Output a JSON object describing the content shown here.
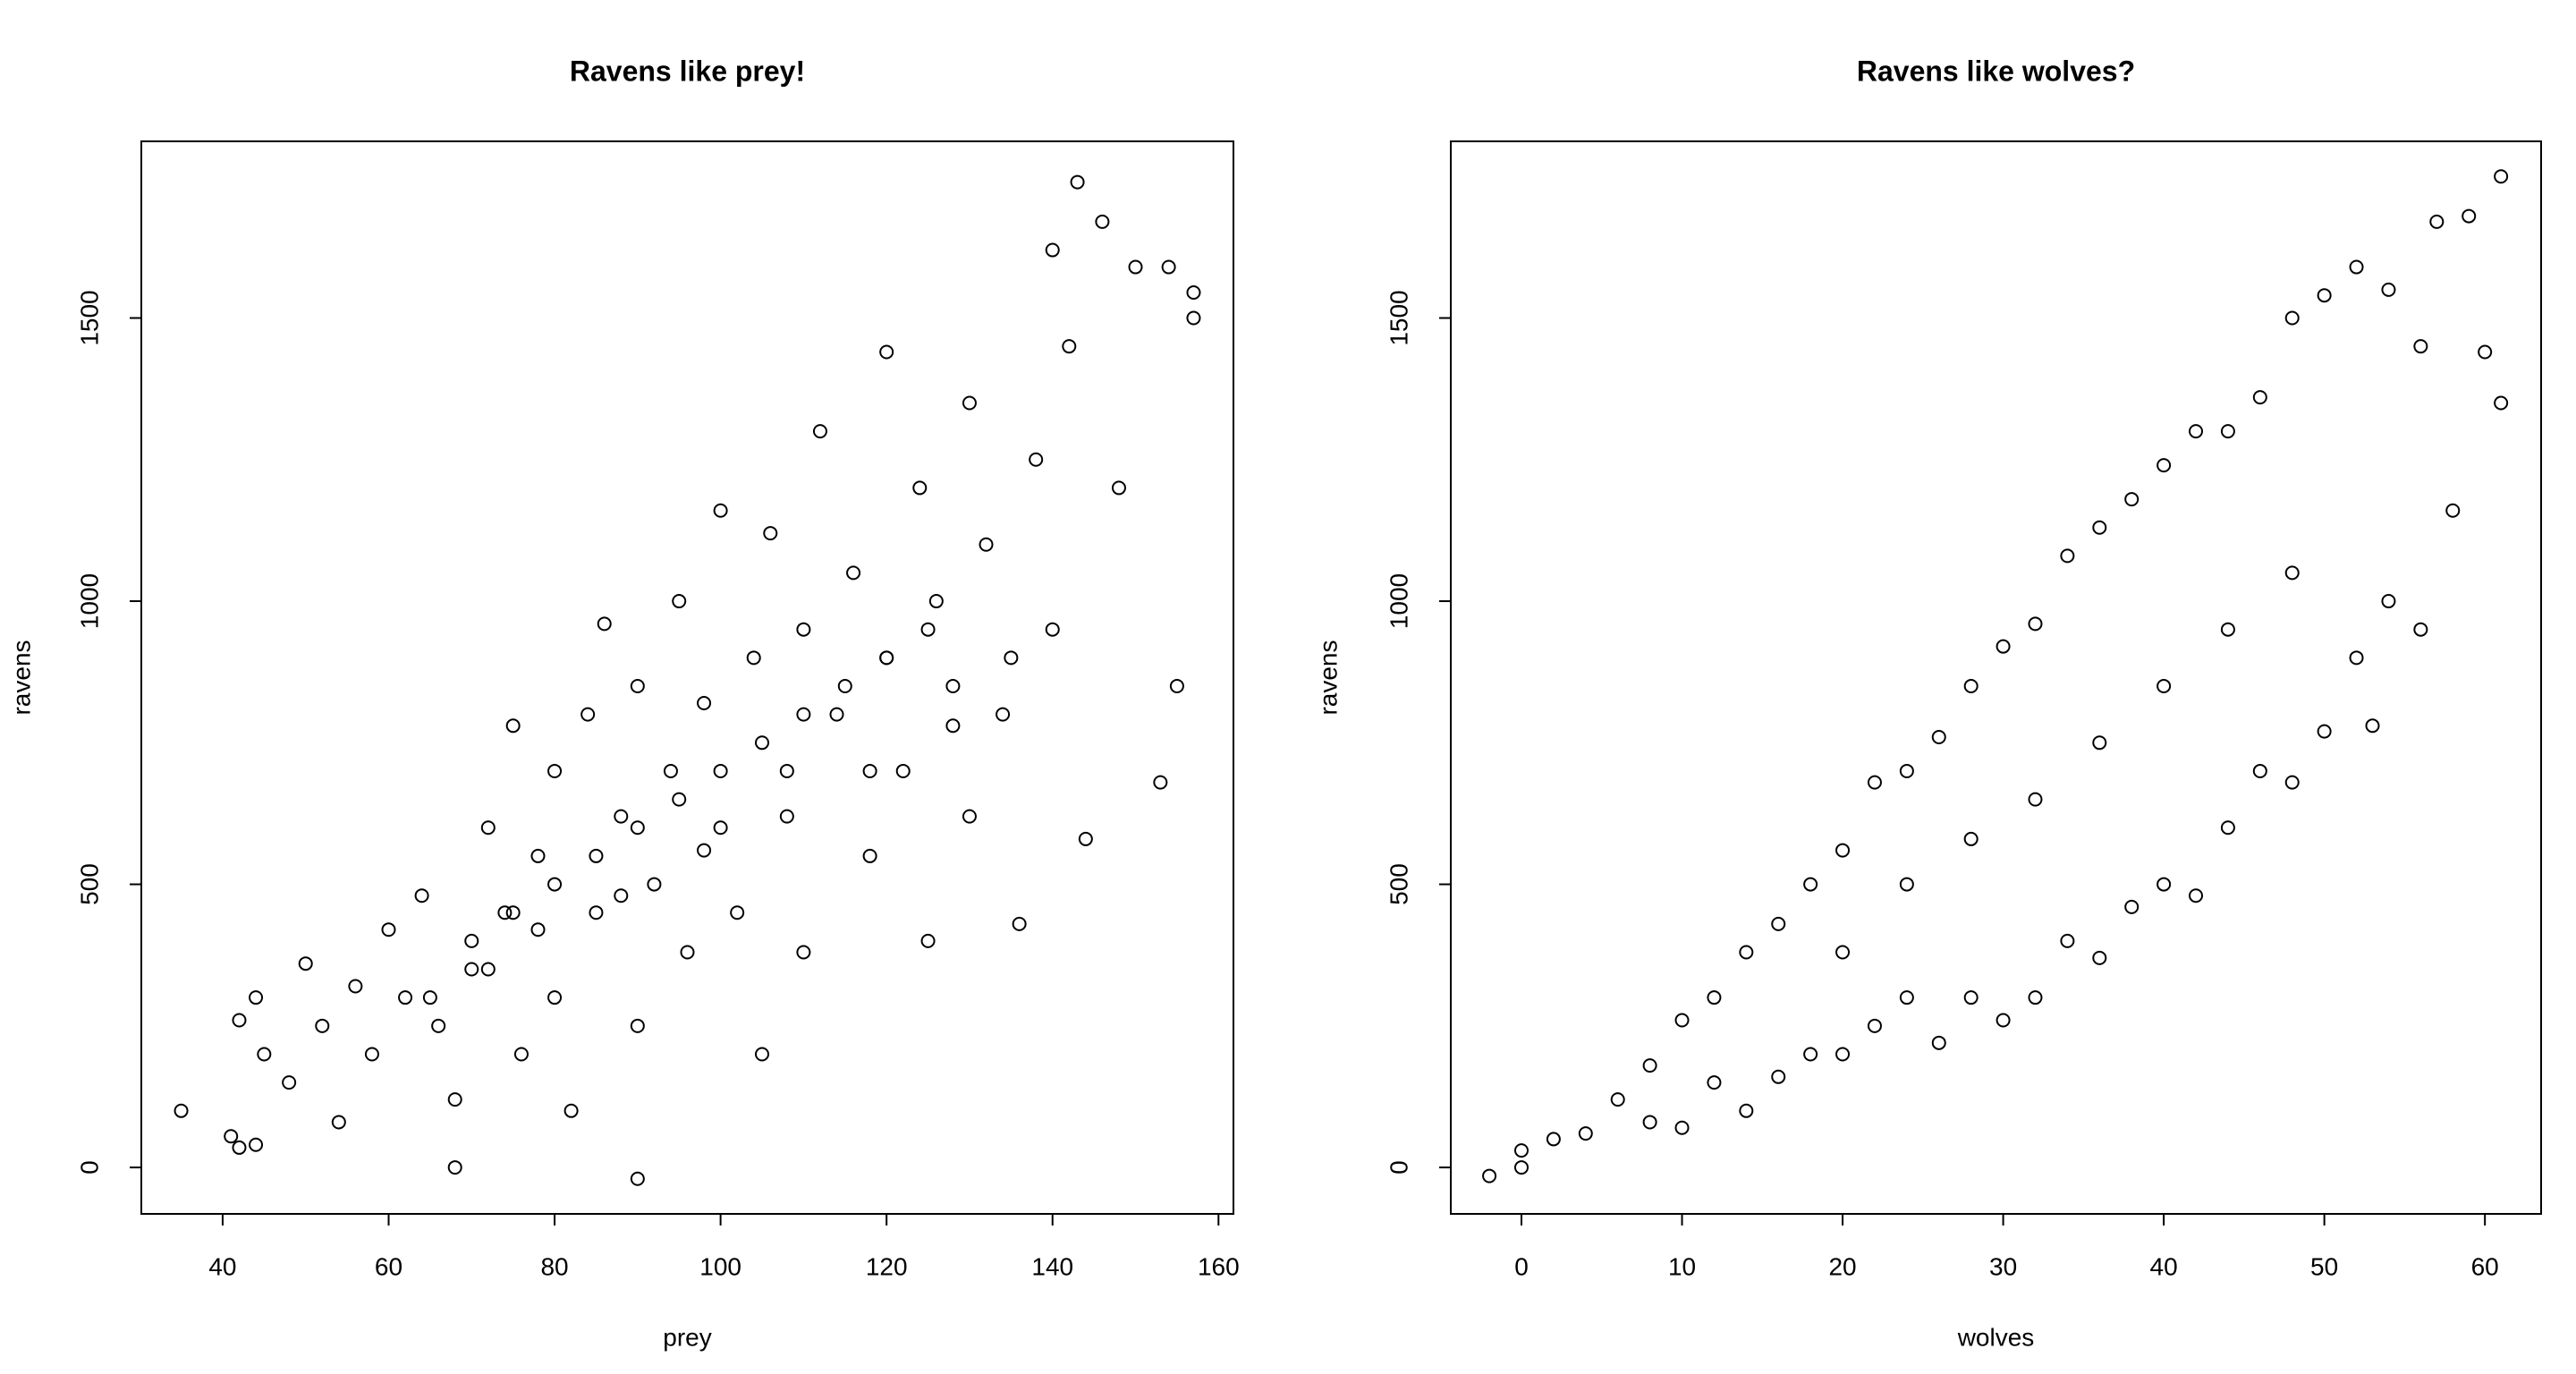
{
  "chart_data": [
    {
      "type": "scatter",
      "title": "Ravens like prey!",
      "x_label": "prey",
      "y_label": "ravens",
      "color": "#000000",
      "xlim": [
        30.2,
        161.8
      ],
      "ylim": [
        -82,
        1812
      ],
      "xticks": [
        40,
        60,
        80,
        100,
        120,
        140,
        160
      ],
      "yticks": [
        0,
        500,
        1000,
        1500
      ],
      "x": [
        35,
        41,
        42,
        44,
        44,
        42,
        45,
        48,
        50,
        52,
        54,
        56,
        58,
        60,
        62,
        64,
        66,
        68,
        68,
        70,
        72,
        74,
        75,
        76,
        78,
        80,
        80,
        82,
        84,
        85,
        86,
        88,
        90,
        90,
        92,
        94,
        95,
        96,
        98,
        100,
        100,
        102,
        104,
        105,
        106,
        108,
        110,
        110,
        112,
        114,
        116,
        118,
        120,
        120,
        122,
        124,
        125,
        126,
        128,
        130,
        130,
        132,
        134,
        136,
        138,
        140,
        140,
        142,
        143,
        144,
        146,
        148,
        150,
        153,
        154,
        155,
        157,
        157,
        90,
        70,
        75,
        80,
        85,
        90,
        95,
        100,
        105,
        110,
        115,
        120,
        125,
        65,
        72,
        78,
        88,
        98,
        108,
        118,
        128,
        135
      ],
      "y": [
        100,
        55,
        35,
        40,
        300,
        260,
        200,
        150,
        360,
        250,
        80,
        320,
        200,
        420,
        300,
        480,
        250,
        120,
        0,
        350,
        600,
        450,
        780,
        200,
        550,
        700,
        300,
        100,
        800,
        450,
        960,
        620,
        250,
        850,
        500,
        700,
        1000,
        380,
        820,
        600,
        1160,
        450,
        900,
        200,
        1120,
        700,
        950,
        380,
        1300,
        800,
        1050,
        550,
        1440,
        900,
        700,
        1200,
        400,
        1000,
        850,
        1350,
        620,
        1100,
        800,
        430,
        1250,
        1620,
        950,
        1450,
        1740,
        580,
        1670,
        1200,
        1590,
        680,
        1590,
        850,
        1545,
        1500,
        -20,
        400,
        450,
        500,
        550,
        600,
        650,
        700,
        750,
        800,
        850,
        900,
        950,
        300,
        350,
        420,
        480,
        560,
        620,
        700,
        780,
        900
      ]
    },
    {
      "type": "scatter",
      "title": "Ravens like wolves?",
      "x_label": "wolves",
      "y_label": "ravens",
      "color": "#000000",
      "xlim": [
        -4.4,
        63.5
      ],
      "ylim": [
        -82,
        1812
      ],
      "xticks": [
        0,
        10,
        20,
        30,
        40,
        50,
        60
      ],
      "yticks": [
        0,
        500,
        1000,
        1500
      ],
      "x": [
        -2,
        0,
        0,
        2,
        4,
        6,
        8,
        8,
        10,
        10,
        12,
        12,
        14,
        14,
        16,
        16,
        18,
        18,
        20,
        20,
        22,
        22,
        24,
        24,
        26,
        26,
        28,
        28,
        30,
        30,
        32,
        32,
        34,
        34,
        36,
        36,
        38,
        38,
        40,
        40,
        42,
        42,
        44,
        44,
        46,
        46,
        48,
        48,
        50,
        50,
        52,
        52,
        54,
        54,
        56,
        56,
        57,
        58,
        59,
        60,
        61,
        61,
        53,
        20,
        24,
        28,
        32,
        36,
        40,
        44,
        48
      ],
      "y": [
        -15,
        0,
        30,
        50,
        60,
        120,
        80,
        180,
        70,
        260,
        150,
        300,
        100,
        380,
        160,
        430,
        200,
        500,
        200,
        560,
        250,
        680,
        300,
        700,
        220,
        760,
        300,
        850,
        260,
        920,
        300,
        960,
        400,
        1080,
        370,
        1130,
        460,
        1180,
        500,
        1240,
        480,
        1300,
        600,
        1300,
        700,
        1360,
        680,
        1500,
        770,
        1540,
        900,
        1590,
        1000,
        1550,
        950,
        1450,
        1670,
        1160,
        1680,
        1440,
        1750,
        1350,
        780,
        380,
        500,
        580,
        650,
        750,
        850,
        950,
        1050
      ]
    }
  ]
}
